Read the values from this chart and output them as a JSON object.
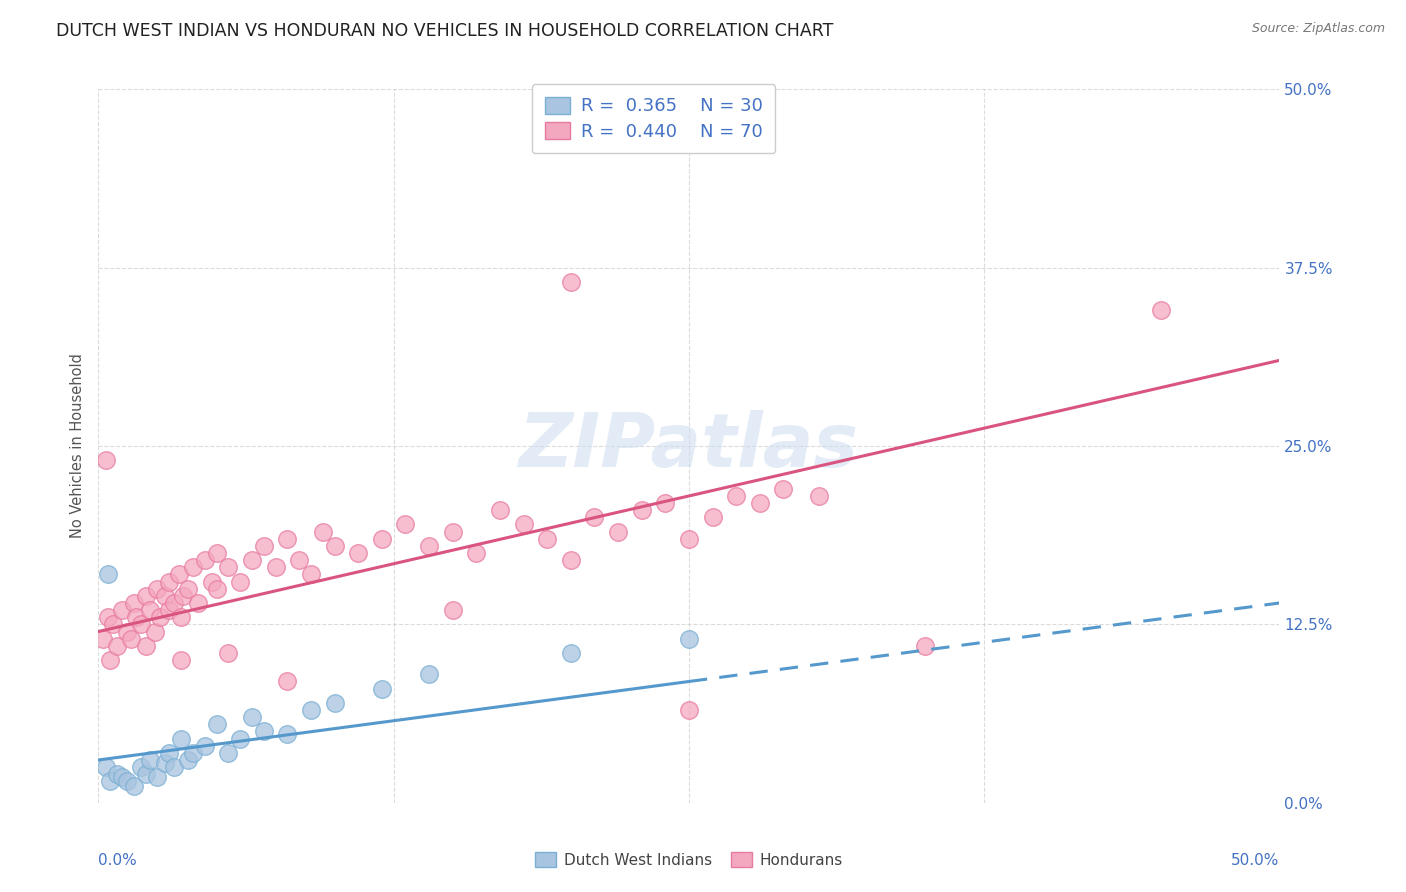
{
  "title": "DUTCH WEST INDIAN VS HONDURAN NO VEHICLES IN HOUSEHOLD CORRELATION CHART",
  "source": "Source: ZipAtlas.com",
  "ylabel": "No Vehicles in Household",
  "ytick_values": [
    0.0,
    12.5,
    25.0,
    37.5,
    50.0
  ],
  "xtick_values": [
    0.0,
    12.5,
    25.0,
    37.5,
    50.0
  ],
  "xrange": [
    0.0,
    50.0
  ],
  "yrange": [
    0.0,
    50.0
  ],
  "watermark_text": "ZIPatlas",
  "legend_label1": "R =  0.365    N = 30",
  "legend_label2": "R =  0.440    N = 70",
  "scatter_blue": [
    [
      0.3,
      2.5
    ],
    [
      0.5,
      1.5
    ],
    [
      0.8,
      2.0
    ],
    [
      1.0,
      1.8
    ],
    [
      1.2,
      1.5
    ],
    [
      1.5,
      1.2
    ],
    [
      1.8,
      2.5
    ],
    [
      2.0,
      2.0
    ],
    [
      2.2,
      3.0
    ],
    [
      2.5,
      1.8
    ],
    [
      2.8,
      2.8
    ],
    [
      3.0,
      3.5
    ],
    [
      3.2,
      2.5
    ],
    [
      3.5,
      4.5
    ],
    [
      3.8,
      3.0
    ],
    [
      4.0,
      3.5
    ],
    [
      4.5,
      4.0
    ],
    [
      5.0,
      5.5
    ],
    [
      5.5,
      3.5
    ],
    [
      6.0,
      4.5
    ],
    [
      6.5,
      6.0
    ],
    [
      7.0,
      5.0
    ],
    [
      8.0,
      4.8
    ],
    [
      9.0,
      6.5
    ],
    [
      10.0,
      7.0
    ],
    [
      12.0,
      8.0
    ],
    [
      14.0,
      9.0
    ],
    [
      20.0,
      10.5
    ],
    [
      25.0,
      11.5
    ],
    [
      0.4,
      16.0
    ]
  ],
  "scatter_pink": [
    [
      0.2,
      11.5
    ],
    [
      0.4,
      13.0
    ],
    [
      0.5,
      10.0
    ],
    [
      0.6,
      12.5
    ],
    [
      0.8,
      11.0
    ],
    [
      1.0,
      13.5
    ],
    [
      1.2,
      12.0
    ],
    [
      1.4,
      11.5
    ],
    [
      1.5,
      14.0
    ],
    [
      1.6,
      13.0
    ],
    [
      1.8,
      12.5
    ],
    [
      2.0,
      14.5
    ],
    [
      2.0,
      11.0
    ],
    [
      2.2,
      13.5
    ],
    [
      2.4,
      12.0
    ],
    [
      2.5,
      15.0
    ],
    [
      2.6,
      13.0
    ],
    [
      2.8,
      14.5
    ],
    [
      3.0,
      13.5
    ],
    [
      3.0,
      15.5
    ],
    [
      3.2,
      14.0
    ],
    [
      3.4,
      16.0
    ],
    [
      3.5,
      13.0
    ],
    [
      3.6,
      14.5
    ],
    [
      3.8,
      15.0
    ],
    [
      4.0,
      16.5
    ],
    [
      4.2,
      14.0
    ],
    [
      4.5,
      17.0
    ],
    [
      4.8,
      15.5
    ],
    [
      5.0,
      17.5
    ],
    [
      5.0,
      15.0
    ],
    [
      5.5,
      16.5
    ],
    [
      6.0,
      15.5
    ],
    [
      6.5,
      17.0
    ],
    [
      7.0,
      18.0
    ],
    [
      7.5,
      16.5
    ],
    [
      8.0,
      18.5
    ],
    [
      8.5,
      17.0
    ],
    [
      9.0,
      16.0
    ],
    [
      9.5,
      19.0
    ],
    [
      10.0,
      18.0
    ],
    [
      11.0,
      17.5
    ],
    [
      12.0,
      18.5
    ],
    [
      13.0,
      19.5
    ],
    [
      14.0,
      18.0
    ],
    [
      15.0,
      19.0
    ],
    [
      16.0,
      17.5
    ],
    [
      17.0,
      20.5
    ],
    [
      18.0,
      19.5
    ],
    [
      19.0,
      18.5
    ],
    [
      20.0,
      17.0
    ],
    [
      21.0,
      20.0
    ],
    [
      22.0,
      19.0
    ],
    [
      23.0,
      20.5
    ],
    [
      24.0,
      21.0
    ],
    [
      25.0,
      18.5
    ],
    [
      26.0,
      20.0
    ],
    [
      27.0,
      21.5
    ],
    [
      28.0,
      21.0
    ],
    [
      29.0,
      22.0
    ],
    [
      0.3,
      24.0
    ],
    [
      20.0,
      36.5
    ],
    [
      45.0,
      34.5
    ],
    [
      8.0,
      8.5
    ],
    [
      25.0,
      6.5
    ],
    [
      35.0,
      11.0
    ],
    [
      3.5,
      10.0
    ],
    [
      5.5,
      10.5
    ],
    [
      15.0,
      13.5
    ],
    [
      30.5,
      21.5
    ]
  ],
  "blue_line": {
    "x0": 0.0,
    "y0": 3.0,
    "x1": 50.0,
    "y1": 14.0
  },
  "blue_line_solid_end": 25.0,
  "pink_line": {
    "x0": 0.0,
    "y0": 12.0,
    "x1": 50.0,
    "y1": 31.0
  },
  "blue_dot_color": "#a8c4e0",
  "blue_edge_color": "#7aafd4",
  "pink_dot_color": "#f4a8c0",
  "pink_edge_color": "#e87aa0",
  "blue_line_color": "#5599cc",
  "pink_line_color": "#d95580",
  "bg_color": "#ffffff",
  "grid_color": "#cccccc",
  "right_tick_color": "#4472c4",
  "bottom_label_color": "#4472c4",
  "title_color": "#222222",
  "ylabel_color": "#555555",
  "legend_number_color": "#4472c4",
  "legend_text_color": "#222222"
}
